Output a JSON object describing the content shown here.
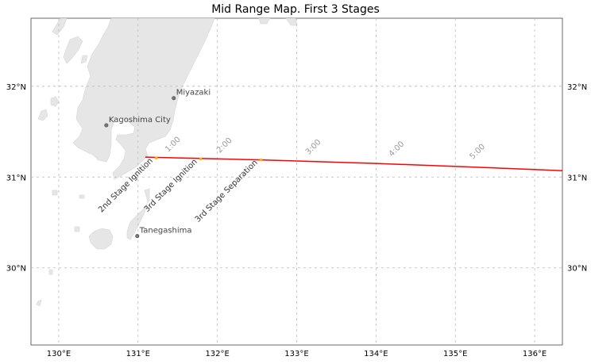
{
  "title": "Mid Range Map. First 3 Stages",
  "map": {
    "lon_range": [
      129.65,
      136.35
    ],
    "lat_range": [
      29.15,
      32.75
    ],
    "land_color": "#e6e6e6",
    "trajectory_color": "#ff0000",
    "event_color": "#ffb000",
    "grid": true,
    "lon_ticks": [
      {
        "value": 130,
        "label": "130°E"
      },
      {
        "value": 131,
        "label": "131°E"
      },
      {
        "value": 132,
        "label": "132°E"
      },
      {
        "value": 133,
        "label": "133°E"
      },
      {
        "value": 134,
        "label": "134°E"
      },
      {
        "value": 135,
        "label": "135°E"
      },
      {
        "value": 136,
        "label": "136°E"
      }
    ],
    "lat_ticks": [
      {
        "value": 30,
        "label": "30°N"
      },
      {
        "value": 31,
        "label": "31°N"
      },
      {
        "value": 32,
        "label": "32°N"
      }
    ],
    "cities": [
      {
        "name": "Miyazaki",
        "lon": 131.45,
        "lat": 31.87
      },
      {
        "name": "Kagoshima City",
        "lon": 130.6,
        "lat": 31.57
      },
      {
        "name": "Tanegashima",
        "lon": 130.99,
        "lat": 30.35
      }
    ],
    "trajectory": [
      {
        "lon": 131.09,
        "lat": 31.22
      },
      {
        "lon": 132.5,
        "lat": 31.19
      },
      {
        "lon": 134.0,
        "lat": 31.15
      },
      {
        "lon": 135.5,
        "lat": 31.1
      },
      {
        "lon": 136.35,
        "lat": 31.07
      }
    ],
    "time_marks": [
      {
        "label": "1:00",
        "lon": 131.38,
        "lat": 31.22
      },
      {
        "label": "2:00",
        "lon": 132.03,
        "lat": 31.21
      },
      {
        "label": "3:00",
        "lon": 133.15,
        "lat": 31.19
      },
      {
        "label": "4:00",
        "lon": 134.2,
        "lat": 31.17
      },
      {
        "label": "5:00",
        "lon": 135.22,
        "lat": 31.14
      }
    ],
    "events": [
      {
        "label": "2nd Stage Ignition",
        "lon": 131.23,
        "lat": 31.21
      },
      {
        "label": "3rd Stage Ignition",
        "lon": 131.79,
        "lat": 31.2
      },
      {
        "label": "3rd Stage Separation",
        "lon": 132.55,
        "lat": 31.19
      }
    ]
  }
}
